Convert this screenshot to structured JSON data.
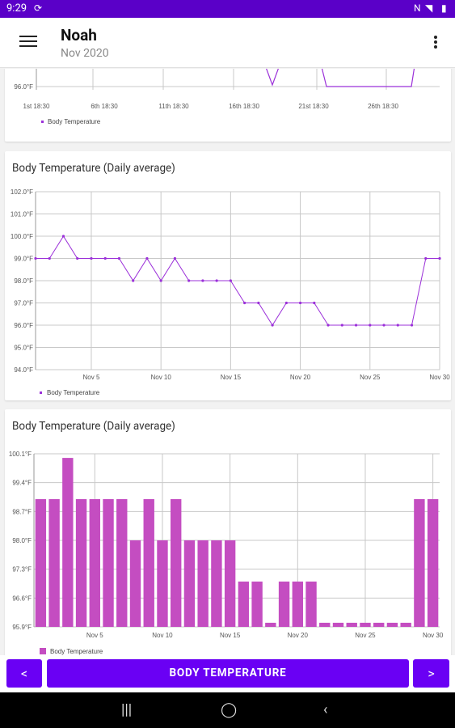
{
  "status_bar": {
    "time": "9:29",
    "app_icon": "sync-icon",
    "icons": [
      "nfc-icon",
      "wifi-icon",
      "battery-icon"
    ]
  },
  "app_bar": {
    "title": "Noah",
    "subtitle": "Nov 2020",
    "menu_icon": "hamburger-icon",
    "overflow_icon": "more-vert-icon"
  },
  "chart_data": [
    {
      "type": "line",
      "title": "",
      "ytick_labels": [
        "96.0°F"
      ],
      "xtick_labels": [
        "1st 18:30",
        "6th 18:30",
        "11th 18:30",
        "16th 18:30",
        "21st 18:30",
        "26th 18:30"
      ],
      "series": [
        {
          "name": "Body Temperature",
          "color": "#9b30d9"
        }
      ],
      "legend": "bottom-left"
    },
    {
      "type": "line",
      "title": "Body Temperature (Daily average)",
      "ytick_labels": [
        "102.0°F",
        "101.0°F",
        "100.0°F",
        "99.0°F",
        "98.0°F",
        "97.0°F",
        "96.0°F",
        "95.0°F",
        "94.0°F"
      ],
      "ylim": [
        94,
        102
      ],
      "xtick_labels": [
        "Nov 5",
        "Nov 10",
        "Nov 15",
        "Nov 20",
        "Nov 25",
        "Nov 30"
      ],
      "x": [
        1,
        2,
        3,
        4,
        5,
        6,
        7,
        8,
        9,
        10,
        11,
        12,
        13,
        14,
        15,
        16,
        17,
        18,
        19,
        20,
        21,
        22,
        23,
        24,
        25,
        26,
        27,
        28,
        29,
        30
      ],
      "series": [
        {
          "name": "Body Temperature",
          "color": "#9b30d9",
          "values": [
            99,
            99,
            100,
            99,
            99,
            99,
            99,
            98,
            99,
            98,
            99,
            98,
            98,
            98,
            98,
            97,
            97,
            96,
            97,
            97,
            97,
            96,
            96,
            96,
            96,
            96,
            96,
            96,
            99,
            99
          ]
        }
      ],
      "legend": "bottom-left"
    },
    {
      "type": "bar",
      "title": "Body Temperature (Daily average)",
      "ytick_labels": [
        "100.1°F",
        "99.4°F",
        "98.7°F",
        "98.0°F",
        "97.3°F",
        "96.6°F",
        "95.9°F"
      ],
      "ylim": [
        95.9,
        100.1
      ],
      "xtick_labels": [
        "Nov 5",
        "Nov 10",
        "Nov 15",
        "Nov 20",
        "Nov 25",
        "Nov 30"
      ],
      "x": [
        1,
        2,
        3,
        4,
        5,
        6,
        7,
        8,
        9,
        10,
        11,
        12,
        13,
        14,
        15,
        16,
        17,
        18,
        19,
        20,
        21,
        22,
        23,
        24,
        25,
        26,
        27,
        28,
        29,
        30
      ],
      "series": [
        {
          "name": "Body Temperature",
          "color": "#c44dc1",
          "values": [
            99,
            99,
            100,
            99,
            99,
            99,
            99,
            98,
            99,
            98,
            99,
            98,
            98,
            98,
            98,
            97,
            97,
            96,
            97,
            97,
            97,
            96,
            96,
            96,
            96,
            96,
            96,
            96,
            99,
            99
          ]
        }
      ],
      "legend": "bottom-left"
    }
  ],
  "bottom_bar": {
    "prev_label": "<",
    "main_label": "BODY TEMPERATURE",
    "next_label": ">"
  },
  "system_nav": {
    "recents_icon": "recents-icon",
    "home_icon": "home-icon",
    "back_icon": "back-icon"
  }
}
